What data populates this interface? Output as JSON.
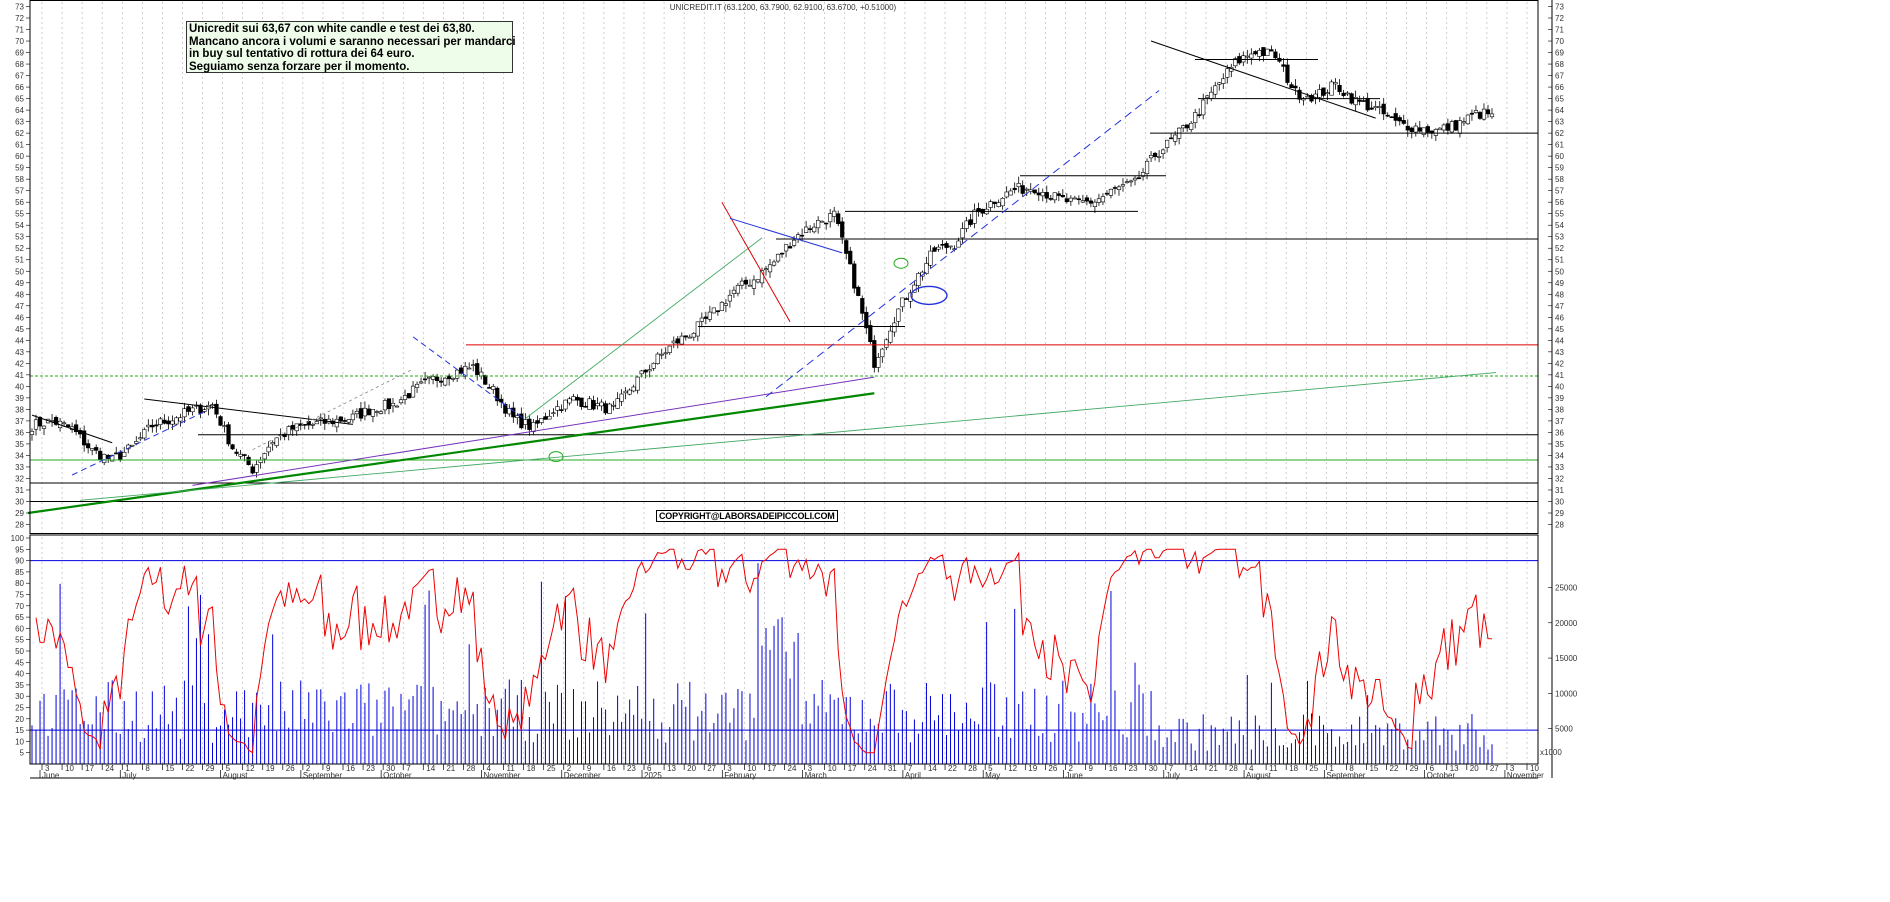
{
  "chart_data": {
    "type": "candlestick",
    "title": "UNICREDIT.IT (63.1200, 63.7900, 62.9100, 63.6700, +0.51000)",
    "annotation": [
      "Unicredit sui 63,67 con white candle e test dei 63,80.",
      "Mancano ancora i volumi e saranno necessari per mandarci",
      "in buy sul tentativo di rottura dei 64 euro.",
      "Seguiamo senza forzare per il momento."
    ],
    "copyright": "COPYRIGHT@LABORSADEIPICCOLI.COM",
    "price_axis": {
      "ylim": [
        28,
        73
      ],
      "ticks": [
        28,
        29,
        30,
        31,
        32,
        33,
        34,
        35,
        36,
        37,
        38,
        39,
        40,
        41,
        42,
        43,
        44,
        45,
        46,
        47,
        48,
        49,
        50,
        51,
        52,
        53,
        54,
        55,
        56,
        57,
        58,
        59,
        60,
        61,
        62,
        63,
        64,
        65,
        66,
        67,
        68,
        69,
        70,
        71,
        72,
        73
      ]
    },
    "oscillator_axis": {
      "ylim": [
        0,
        100
      ],
      "ticks": [
        5,
        10,
        15,
        20,
        25,
        30,
        35,
        40,
        45,
        50,
        55,
        60,
        65,
        70,
        75,
        80,
        85,
        90,
        95,
        100
      ]
    },
    "volume_axis": {
      "ylim": [
        0,
        32000
      ],
      "ticks": [
        5000,
        10000,
        15000,
        20000,
        25000
      ],
      "unit_label": "x1000"
    },
    "x_days": [
      "3",
      "10",
      "17",
      "24",
      "1",
      "8",
      "15",
      "22",
      "29",
      "5",
      "12",
      "19",
      "26",
      "2",
      "9",
      "16",
      "23",
      "30",
      "7",
      "14",
      "21",
      "28",
      "4",
      "11",
      "18",
      "25",
      "2",
      "9",
      "16",
      "23",
      "6",
      "13",
      "20",
      "27",
      "3",
      "10",
      "17",
      "24",
      "3",
      "10",
      "17",
      "24",
      "31",
      "7",
      "14",
      "22",
      "28",
      "5",
      "12",
      "19",
      "26",
      "2",
      "9",
      "16",
      "23",
      "30",
      "7",
      "14",
      "21",
      "28",
      "4",
      "11",
      "18",
      "25",
      "1",
      "8",
      "15",
      "22",
      "29",
      "6",
      "13",
      "20",
      "27",
      "3",
      "10"
    ],
    "x_months": [
      "June",
      "July",
      "August",
      "September",
      "October",
      "November",
      "December",
      "2025",
      "February",
      "March",
      "April",
      "May",
      "June",
      "July",
      "August",
      "September",
      "October",
      "November"
    ],
    "weekly_closes": [
      36.6,
      37.0,
      36.3,
      34.4,
      33.6,
      34.7,
      36.6,
      37.2,
      37.9,
      38.4,
      34.7,
      32.8,
      35.3,
      36.3,
      36.7,
      37.0,
      37.3,
      38.1,
      38.4,
      39.6,
      40.6,
      41.2,
      41.7,
      39.6,
      37.2,
      36.4,
      38.0,
      38.9,
      38.4,
      38.0,
      40.2,
      42.1,
      43.7,
      44.8,
      46.4,
      48.3,
      49.3,
      50.8,
      52.9,
      54.1,
      54.9,
      49.0,
      42.1,
      46.0,
      49.1,
      51.8,
      52.4,
      54.9,
      56.2,
      57.1,
      57.3,
      56.4,
      55.9,
      56.1,
      57.1,
      57.6,
      60.1,
      61.6,
      63.5,
      65.9,
      68.1,
      69.2,
      68.7,
      65.5,
      65.2,
      66.2,
      64.8,
      64.1,
      62.9,
      62.5,
      62.2,
      62.7,
      63.67
    ],
    "horizontal_levels": [
      30.0,
      31.6,
      33.6,
      35.8,
      40.9,
      43.6,
      45.2,
      52.8,
      55.2,
      58.3,
      62.0,
      65.0,
      68.4
    ],
    "rsi_overbought": 90,
    "rsi_oversold": 15,
    "colors": {
      "price": "#000000",
      "oscillator": "#ee0000",
      "volume": "#0000dd",
      "trend_green": "#008800",
      "resistance_red": "#dd0000",
      "trend_blue_dash": "#2233dd",
      "note_bg": "#eefcea"
    }
  }
}
